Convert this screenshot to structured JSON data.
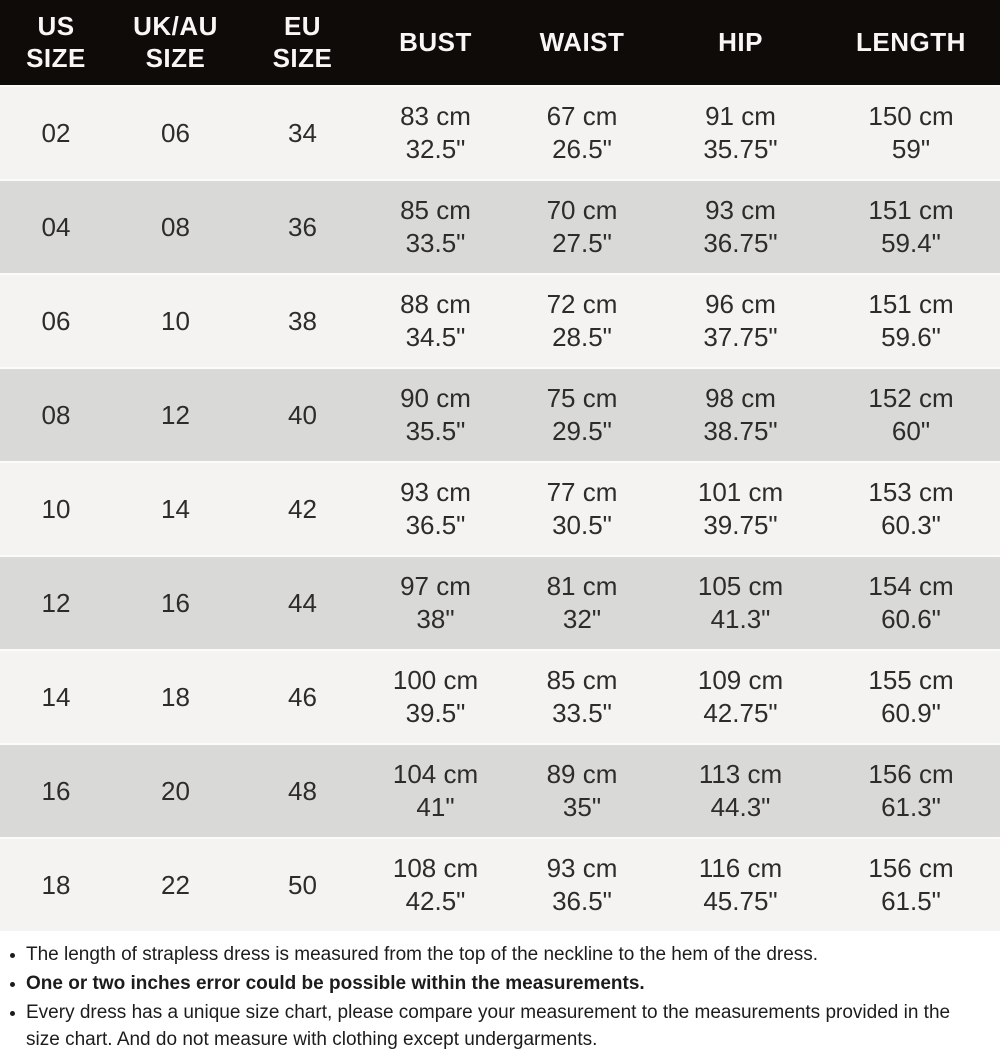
{
  "table": {
    "columns": [
      "US\nSIZE",
      "UK/AU\nSIZE",
      "EU\nSIZE",
      "BUST",
      "WAIST",
      "HIP",
      "LENGTH"
    ],
    "rows": [
      {
        "cells": [
          "02",
          "06",
          "34",
          "83 cm\n32.5\"",
          "67 cm\n26.5\"",
          "91 cm\n35.75\"",
          "150 cm\n59\""
        ]
      },
      {
        "cells": [
          "04",
          "08",
          "36",
          "85 cm\n33.5\"",
          "70 cm\n27.5\"",
          "93 cm\n36.75\"",
          "151 cm\n59.4\""
        ]
      },
      {
        "cells": [
          "06",
          "10",
          "38",
          "88 cm\n34.5\"",
          "72 cm\n28.5\"",
          "96 cm\n37.75\"",
          "151 cm\n59.6\""
        ]
      },
      {
        "cells": [
          "08",
          "12",
          "40",
          "90 cm\n35.5\"",
          "75 cm\n29.5\"",
          "98 cm\n38.75\"",
          "152 cm\n60\""
        ]
      },
      {
        "cells": [
          "10",
          "14",
          "42",
          "93 cm\n36.5\"",
          "77 cm\n30.5\"",
          "101 cm\n39.75\"",
          "153 cm\n60.3\""
        ]
      },
      {
        "cells": [
          "12",
          "16",
          "44",
          "97 cm\n38\"",
          "81 cm\n32\"",
          "105 cm\n41.3\"",
          "154 cm\n60.6\""
        ]
      },
      {
        "cells": [
          "14",
          "18",
          "46",
          "100 cm\n39.5\"",
          "85 cm\n33.5\"",
          "109 cm\n42.75\"",
          "155 cm\n60.9\""
        ]
      },
      {
        "cells": [
          "16",
          "20",
          "48",
          "104 cm\n41\"",
          "89 cm\n35\"",
          "113 cm\n44.3\"",
          "156 cm\n61.3\""
        ]
      },
      {
        "cells": [
          "18",
          "22",
          "50",
          "108 cm\n42.5\"",
          "93 cm\n36.5\"",
          "116 cm\n45.75\"",
          "156 cm\n61.5\""
        ]
      }
    ]
  },
  "notes": [
    {
      "text": "The length of strapless dress is measured from the top of the neckline to the hem of the dress.",
      "bold": false
    },
    {
      "text": "One or two inches error could be possible within the measurements.",
      "bold": true
    },
    {
      "text": "Every dress has a unique size chart, please compare your measurement to the measurements provided in the\nsize chart. And do not measure with clothing except undergarments.",
      "bold": false
    }
  ],
  "colors": {
    "header_bg": "#0e0b09",
    "header_text": "#f8f7f6",
    "row_light": "#f5f3f1",
    "row_gray": "#d9dad8",
    "row_separator": "#fbfbfa",
    "cell_text": "#2e2c2b"
  }
}
